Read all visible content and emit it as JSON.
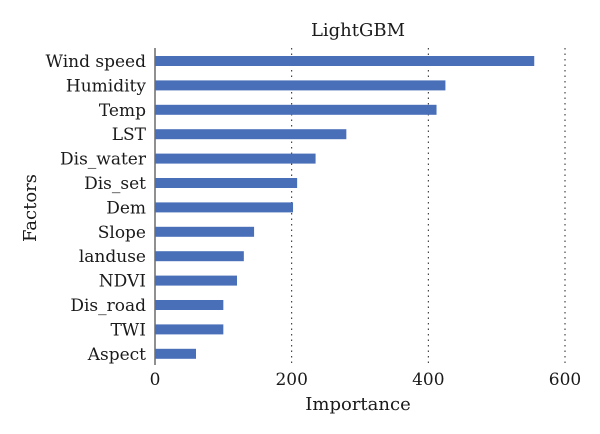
{
  "chart_data": {
    "type": "bar",
    "orientation": "horizontal",
    "title": "LightGBM",
    "xlabel": "Importance",
    "ylabel": "Factors",
    "xlim": [
      0,
      600
    ],
    "xticks": [
      0,
      200,
      400,
      600
    ],
    "grid": "vertical dotted",
    "bar_color": "#4a6fb9",
    "categories": [
      "Wind speed",
      "Humidity",
      "Temp",
      "LST",
      "Dis_water",
      "Dis_set",
      "Dem",
      "Slope",
      "landuse",
      "NDVI",
      "Dis_road",
      "TWI",
      "Aspect"
    ],
    "values": [
      555,
      425,
      412,
      280,
      235,
      208,
      202,
      145,
      130,
      120,
      100,
      100,
      60
    ]
  }
}
